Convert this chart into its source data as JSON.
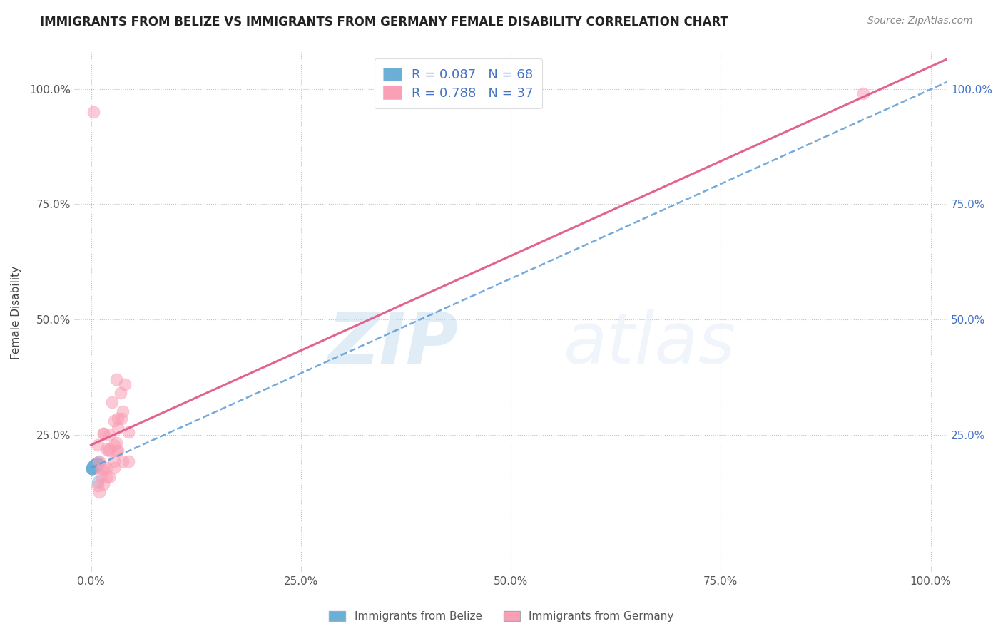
{
  "title": "IMMIGRANTS FROM BELIZE VS IMMIGRANTS FROM GERMANY FEMALE DISABILITY CORRELATION CHART",
  "source": "Source: ZipAtlas.com",
  "ylabel": "Female Disability",
  "xlim": [
    -0.02,
    1.02
  ],
  "ylim": [
    -0.05,
    1.08
  ],
  "xtick_labels": [
    "0.0%",
    "25.0%",
    "50.0%",
    "75.0%",
    "100.0%"
  ],
  "xtick_vals": [
    0.0,
    0.25,
    0.5,
    0.75,
    1.0
  ],
  "ytick_labels": [
    "25.0%",
    "50.0%",
    "75.0%",
    "100.0%"
  ],
  "ytick_vals": [
    0.25,
    0.5,
    0.75,
    1.0
  ],
  "belize_R": 0.087,
  "belize_N": 68,
  "germany_R": 0.788,
  "germany_N": 37,
  "belize_color": "#6baed6",
  "germany_color": "#fa9fb5",
  "belize_line_color": "#5b9bd5",
  "germany_line_color": "#e05c8a",
  "legend_label_belize": "Immigrants from Belize",
  "legend_label_germany": "Immigrants from Germany",
  "watermark_zip": "ZIP",
  "watermark_atlas": "atlas",
  "background_color": "#ffffff",
  "grid_color": "#bbbbbb",
  "belize_x": [
    0.003,
    0.005,
    0.004,
    0.002,
    0.006,
    0.003,
    0.008,
    0.004,
    0.003,
    0.002,
    0.001,
    0.004,
    0.006,
    0.003,
    0.002,
    0.007,
    0.004,
    0.009,
    0.003,
    0.002,
    0.005,
    0.001,
    0.004,
    0.003,
    0.007,
    0.002,
    0.005,
    0.003,
    0.004,
    0.001,
    0.002,
    0.005,
    0.004,
    0.003,
    0.007,
    0.001,
    0.004,
    0.005,
    0.003,
    0.002,
    0.004,
    0.002,
    0.003,
    0.005,
    0.001,
    0.007,
    0.004,
    0.003,
    0.002,
    0.005,
    0.004,
    0.001,
    0.003,
    0.002,
    0.005,
    0.004,
    0.007,
    0.003,
    0.002,
    0.001,
    0.004,
    0.005,
    0.003,
    0.002,
    0.008,
    0.004,
    0.005,
    0.003
  ],
  "belize_y": [
    0.18,
    0.185,
    0.182,
    0.178,
    0.188,
    0.18,
    0.183,
    0.181,
    0.179,
    0.182,
    0.176,
    0.184,
    0.181,
    0.18,
    0.179,
    0.186,
    0.182,
    0.19,
    0.18,
    0.179,
    0.184,
    0.177,
    0.182,
    0.18,
    0.187,
    0.179,
    0.184,
    0.18,
    0.182,
    0.177,
    0.179,
    0.184,
    0.182,
    0.18,
    0.187,
    0.177,
    0.182,
    0.184,
    0.18,
    0.179,
    0.182,
    0.179,
    0.18,
    0.184,
    0.177,
    0.187,
    0.182,
    0.18,
    0.179,
    0.184,
    0.182,
    0.177,
    0.18,
    0.179,
    0.184,
    0.182,
    0.187,
    0.18,
    0.179,
    0.177,
    0.182,
    0.184,
    0.18,
    0.179,
    0.148,
    0.182,
    0.184,
    0.18
  ],
  "germany_x": [
    0.003,
    0.03,
    0.025,
    0.035,
    0.04,
    0.028,
    0.038,
    0.032,
    0.022,
    0.036,
    0.045,
    0.03,
    0.015,
    0.028,
    0.038,
    0.018,
    0.045,
    0.03,
    0.015,
    0.022,
    0.032,
    0.008,
    0.022,
    0.01,
    0.018,
    0.012,
    0.028,
    0.015,
    0.032,
    0.022,
    0.012,
    0.018,
    0.028,
    0.015,
    0.01,
    0.92,
    0.008
  ],
  "germany_y": [
    0.95,
    0.37,
    0.32,
    0.34,
    0.36,
    0.28,
    0.3,
    0.265,
    0.25,
    0.285,
    0.255,
    0.215,
    0.252,
    0.228,
    0.192,
    0.218,
    0.192,
    0.232,
    0.252,
    0.218,
    0.285,
    0.228,
    0.215,
    0.192,
    0.178,
    0.16,
    0.192,
    0.175,
    0.215,
    0.158,
    0.175,
    0.158,
    0.178,
    0.142,
    0.125,
    0.99,
    0.14
  ]
}
